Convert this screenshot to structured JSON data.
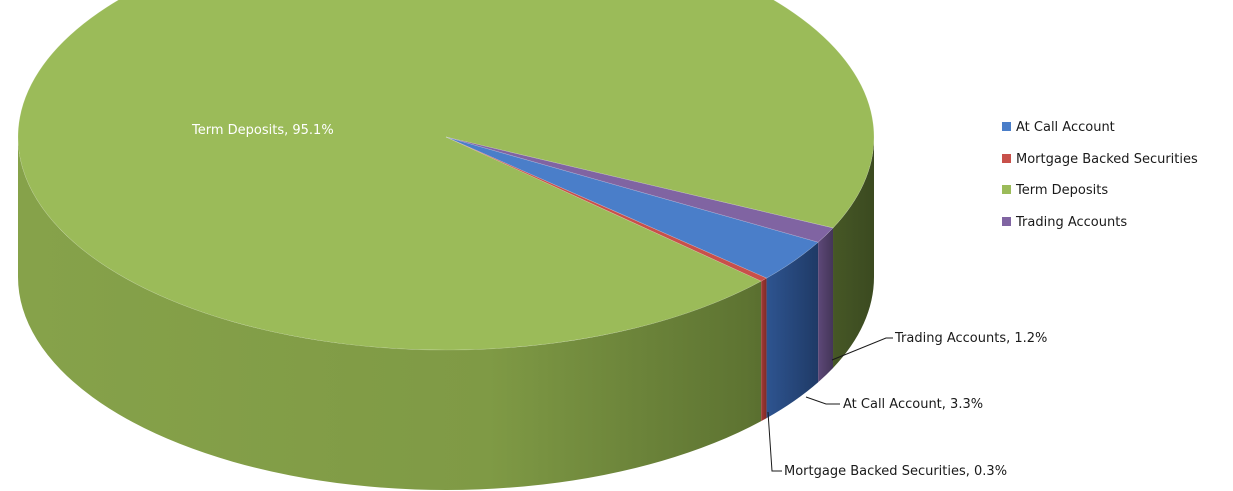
{
  "chart_data": {
    "type": "pie",
    "style": "3d",
    "legend_position": "right",
    "series": [
      {
        "name": "At Call Account",
        "value": 3.3,
        "label": "At Call Account, 3.3%",
        "color": "#4a7ec9"
      },
      {
        "name": "Mortgage Backed Securities",
        "value": 0.3,
        "label": "Mortgage Backed Securities, 0.3%",
        "color": "#c8504a"
      },
      {
        "name": "Term Deposits",
        "value": 95.1,
        "label": "Term Deposits, 95.1%",
        "color": "#9bbb59"
      },
      {
        "name": "Trading Accounts",
        "value": 1.2,
        "label": "Trading Accounts, 1.2%",
        "color": "#8064a2"
      }
    ],
    "legend": [
      {
        "name": "At Call Account",
        "color": "#4a7ec9"
      },
      {
        "name": "Mortgage Backed Securities",
        "color": "#c8504a"
      },
      {
        "name": "Term Deposits",
        "color": "#9bbb59"
      },
      {
        "name": "Trading Accounts",
        "color": "#8064a2"
      }
    ]
  }
}
